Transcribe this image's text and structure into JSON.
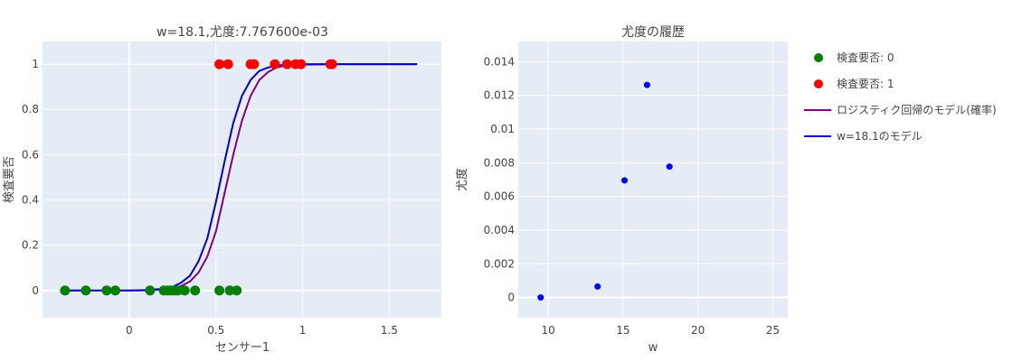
{
  "colors": {
    "plot_bg": "#e5ecf6",
    "grid": "#ffffff",
    "class0": "#008000",
    "class1": "#ff0000",
    "model": "#800080",
    "model_w": "#0000cc",
    "history": "#0000ff"
  },
  "legend": {
    "items": [
      {
        "label": "検査要否: 0",
        "kind": "marker",
        "color_key": "class0"
      },
      {
        "label": "検査要否: 1",
        "kind": "marker",
        "color_key": "class1"
      },
      {
        "label": "ロジスティク回帰のモデル(確率)",
        "kind": "line",
        "color_key": "model"
      },
      {
        "label": "w=18.1のモデル",
        "kind": "line",
        "color_key": "model_w"
      }
    ]
  },
  "chart_data": [
    {
      "type": "scatter",
      "title": "w=18.1,尤度:7.767600e-03",
      "xlabel": "センサー1",
      "ylabel": "検査要否",
      "xlim": [
        -0.5,
        1.8
      ],
      "ylim": [
        -0.12,
        1.1
      ],
      "xticks": [
        0,
        0.5,
        1,
        1.5
      ],
      "xtick_labels": [
        "0",
        "0.5",
        "1",
        "1.5"
      ],
      "yticks": [
        0,
        0.2,
        0.4,
        0.6,
        0.8,
        1
      ],
      "ytick_labels": [
        "0",
        "0.2",
        "0.4",
        "0.6",
        "0.8",
        "1"
      ],
      "grid": true,
      "series": [
        {
          "name": "検査要否: 0",
          "mode": "markers",
          "color_key": "class0",
          "x": [
            -0.37,
            -0.25,
            -0.13,
            -0.08,
            0.12,
            0.2,
            0.22,
            0.24,
            0.26,
            0.28,
            0.32,
            0.38,
            0.52,
            0.58,
            0.62
          ],
          "y": [
            0,
            0,
            0,
            0,
            0,
            0,
            0,
            0,
            0,
            0,
            0,
            0,
            0,
            0,
            0
          ]
        },
        {
          "name": "検査要否: 1",
          "mode": "markers",
          "color_key": "class1",
          "x": [
            0.52,
            0.57,
            0.7,
            0.72,
            0.84,
            0.91,
            0.96,
            0.99,
            1.16,
            1.17
          ],
          "y": [
            1,
            1,
            1,
            1,
            1,
            1,
            1,
            1,
            1,
            1
          ]
        },
        {
          "name": "ロジスティク回帰のモデル(確率)",
          "mode": "lines",
          "color_key": "model",
          "x": [
            -0.37,
            -0.2,
            0.0,
            0.1,
            0.2,
            0.25,
            0.3,
            0.35,
            0.4,
            0.45,
            0.5,
            0.55,
            0.6,
            0.65,
            0.7,
            0.75,
            0.8,
            0.85,
            0.9,
            1.0,
            1.2,
            1.4,
            1.66
          ],
          "y": [
            0,
            0,
            0,
            0.001,
            0.005,
            0.01,
            0.02,
            0.04,
            0.08,
            0.15,
            0.26,
            0.43,
            0.6,
            0.75,
            0.86,
            0.93,
            0.965,
            0.985,
            0.993,
            0.998,
            1,
            1,
            1
          ]
        },
        {
          "name": "w=18.1のモデル",
          "mode": "lines",
          "color_key": "model_w",
          "x": [
            -0.37,
            -0.2,
            0.0,
            0.1,
            0.2,
            0.25,
            0.3,
            0.35,
            0.4,
            0.45,
            0.5,
            0.55,
            0.6,
            0.65,
            0.7,
            0.75,
            0.8,
            0.85,
            0.9,
            1.0,
            1.2,
            1.4,
            1.66
          ],
          "y": [
            0,
            0,
            0,
            0.002,
            0.008,
            0.016,
            0.035,
            0.065,
            0.13,
            0.23,
            0.39,
            0.57,
            0.74,
            0.86,
            0.93,
            0.97,
            0.985,
            0.993,
            0.997,
            1,
            1,
            1,
            1
          ]
        }
      ]
    },
    {
      "type": "scatter",
      "title": "尤度の履歴",
      "xlabel": "w",
      "ylabel": "尤度",
      "xlim": [
        8,
        26
      ],
      "ylim": [
        -0.0012,
        0.0152
      ],
      "xticks": [
        10,
        15,
        20,
        25
      ],
      "xtick_labels": [
        "10",
        "15",
        "20",
        "25"
      ],
      "yticks": [
        0,
        0.002,
        0.004,
        0.006,
        0.008,
        0.01,
        0.012,
        0.014
      ],
      "ytick_labels": [
        "0",
        "0.002",
        "0.004",
        "0.006",
        "0.008",
        "0.01",
        "0.012",
        "0.014"
      ],
      "grid": true,
      "series": [
        {
          "mode": "markers",
          "color_key": "history",
          "x": [
            9.5,
            13.3,
            15.1,
            16.6,
            18.1
          ],
          "y": [
            0.0,
            0.00065,
            0.00695,
            0.01262,
            0.00777
          ]
        }
      ]
    }
  ]
}
